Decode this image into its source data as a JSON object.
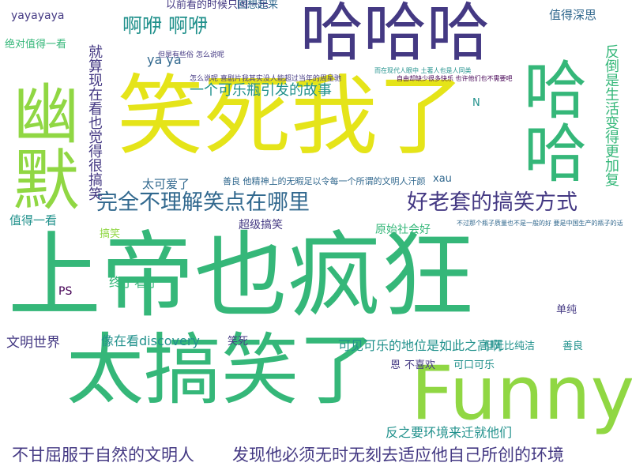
{
  "palette": {
    "yellow": "#e5e419",
    "light_green": "#90d743",
    "green": "#35b779",
    "teal": "#21918c",
    "blue": "#31688e",
    "indigo": "#443983",
    "purple": "#440154"
  },
  "words": [
    {
      "text": "上帝也疯狂",
      "color": "green"
    },
    {
      "text": "笑死我了",
      "color": "yellow"
    },
    {
      "text": "太搞笑了",
      "color": "green"
    },
    {
      "text": "哈哈哈",
      "color": "indigo"
    },
    {
      "text": "Funny",
      "color": "light_green"
    },
    {
      "text": "幽默",
      "color": "light_green"
    },
    {
      "text": "哈哈",
      "color": "green"
    },
    {
      "text": "完全不理解笑点在哪里",
      "color": "blue"
    },
    {
      "text": "好老套的搞笑方式",
      "color": "indigo"
    },
    {
      "text": "不甘屈服于自然的文明人",
      "color": "indigo"
    },
    {
      "text": "发现他必须无时无刻去适应他自己所创的环境",
      "color": "indigo"
    },
    {
      "text": "啊咿 啊咿",
      "color": "teal"
    },
    {
      "text": "一个可乐瓶引发的故事",
      "color": "teal"
    },
    {
      "text": "反倒是生活变得更加复",
      "color": "green"
    },
    {
      "text": "就算现在看也觉得很搞笑",
      "color": "indigo"
    },
    {
      "text": "反之要环境来迁就他们",
      "color": "teal"
    },
    {
      "text": "文明世界",
      "color": "indigo"
    },
    {
      "text": "像在看discovery",
      "color": "teal"
    },
    {
      "text": "可见可乐的地位是如此之高啊",
      "color": "teal"
    },
    {
      "text": "终于看了",
      "color": "green"
    },
    {
      "text": "值得一看",
      "color": "teal"
    },
    {
      "text": "值得深思",
      "color": "blue"
    },
    {
      "text": "太可爱了",
      "color": "blue"
    },
    {
      "text": "超级搞笑",
      "color": "indigo"
    },
    {
      "text": "原始社会好",
      "color": "green"
    },
    {
      "text": "yayayaya",
      "color": "indigo"
    },
    {
      "text": "ya ya",
      "color": "blue"
    },
    {
      "text": "以前看的时候只图一乐",
      "color": "indigo"
    },
    {
      "text": "回想起来",
      "color": "blue"
    },
    {
      "text": "绝对值得一看",
      "color": "green"
    },
    {
      "text": "笑死",
      "color": "indigo"
    },
    {
      "text": "PS",
      "color": "purple"
    },
    {
      "text": "xau",
      "color": "blue"
    },
    {
      "text": "N",
      "color": "teal"
    },
    {
      "text": "搞笑",
      "color": "light_green"
    },
    {
      "text": "单纯",
      "color": "indigo"
    },
    {
      "text": "但无比纯洁",
      "color": "teal"
    },
    {
      "text": "善良",
      "color": "teal"
    },
    {
      "text": "不喜欢",
      "color": "indigo"
    },
    {
      "text": "可口可乐",
      "color": "teal"
    },
    {
      "text": "恩",
      "color": "indigo"
    },
    {
      "text": "善良 他精神上的无暇足以令每一个所谓的文明人汗颜",
      "color": "blue"
    },
    {
      "text": "而在现代人眼中 土著人也是人同类",
      "color": "teal"
    },
    {
      "text": "自由却缺少很多快乐 也许他们也不需要吧",
      "color": "purple"
    },
    {
      "text": "不过那个瓶子质量也不是一般的好 要是中国生产的瓶子的话",
      "color": "blue"
    },
    {
      "text": "怎么说呢 喜剧片我其实没人能超过当年的周星驰",
      "color": "indigo"
    },
    {
      "text": "但是有些俗 怎么说呢",
      "color": "indigo"
    }
  ]
}
